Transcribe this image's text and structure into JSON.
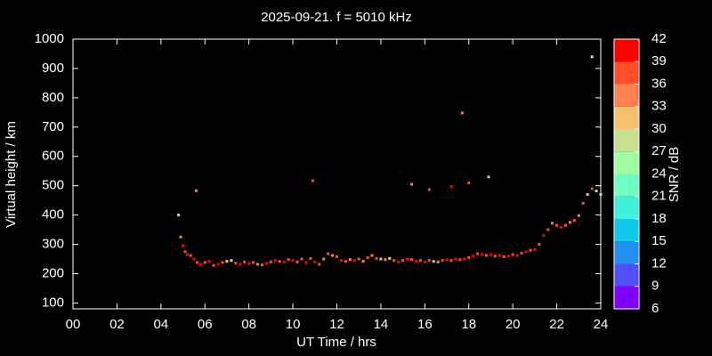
{
  "chart_data": {
    "type": "scatter",
    "title": "2025-09-21. f = 5010 kHz",
    "xlabel": "UT Time / hrs",
    "ylabel": "Virtual height / km",
    "colorbar_label": "SNR / dB",
    "xlim": [
      0,
      24
    ],
    "xticks": [
      {
        "value": 0,
        "label": "00"
      },
      {
        "value": 2,
        "label": "02"
      },
      {
        "value": 4,
        "label": "04"
      },
      {
        "value": 6,
        "label": "06"
      },
      {
        "value": 8,
        "label": "08"
      },
      10,
      12,
      14,
      16,
      18,
      20,
      22,
      24
    ],
    "ylim": [
      80,
      1000
    ],
    "yticks": [
      100,
      200,
      300,
      400,
      500,
      600,
      700,
      800,
      900,
      1000
    ],
    "clim": [
      6,
      42
    ],
    "cticks": [
      6,
      9,
      12,
      15,
      18,
      21,
      24,
      27,
      30,
      33,
      36,
      39,
      42
    ],
    "colors": [
      "#8000ff",
      "#5050ff",
      "#2090f0",
      "#10c8e8",
      "#40f0d8",
      "#70ffc0",
      "#a0ffa0",
      "#c8e090",
      "#f7c070",
      "#ff8050",
      "#ff4f2a",
      "#ff0000"
    ],
    "x": [
      4.8,
      4.9,
      5.0,
      5.1,
      5.2,
      5.35,
      5.5,
      5.65,
      5.8,
      6.0,
      6.2,
      6.4,
      6.6,
      6.8,
      7.0,
      7.2,
      7.4,
      7.6,
      7.8,
      8.0,
      8.2,
      8.4,
      8.6,
      8.8,
      9.0,
      9.2,
      9.4,
      9.6,
      9.8,
      10.0,
      10.2,
      10.4,
      10.6,
      10.8,
      11.0,
      11.2,
      11.4,
      11.6,
      11.8,
      12.0,
      12.2,
      12.4,
      12.6,
      12.8,
      13.0,
      13.2,
      13.4,
      13.6,
      13.8,
      14.0,
      14.2,
      14.4,
      14.6,
      14.8,
      15.0,
      15.2,
      15.4,
      15.6,
      15.8,
      16.0,
      16.2,
      16.4,
      16.6,
      16.8,
      17.0,
      17.2,
      17.4,
      17.6,
      17.8,
      18.0,
      18.2,
      18.4,
      18.6,
      18.8,
      19.0,
      19.2,
      19.4,
      19.6,
      19.8,
      20.0,
      20.2,
      20.4,
      20.6,
      20.8,
      21.0,
      21.2,
      21.4,
      21.6,
      21.8,
      22.0,
      22.2,
      22.4,
      22.6,
      22.8,
      23.0,
      23.2,
      23.4,
      23.6,
      23.8,
      24.0,
      5.6,
      10.9,
      15.4,
      16.2,
      17.2,
      17.7,
      18.0,
      18.9,
      23.6
    ],
    "values": [
      400,
      325,
      295,
      275,
      265,
      262,
      250,
      238,
      232,
      238,
      242,
      228,
      232,
      238,
      242,
      245,
      236,
      232,
      240,
      235,
      238,
      232,
      230,
      235,
      240,
      245,
      242,
      240,
      248,
      245,
      240,
      250,
      238,
      252,
      240,
      232,
      250,
      268,
      262,
      258,
      245,
      242,
      248,
      245,
      250,
      242,
      255,
      262,
      252,
      250,
      248,
      252,
      245,
      240,
      245,
      250,
      248,
      242,
      245,
      240,
      245,
      242,
      240,
      245,
      248,
      245,
      250,
      248,
      250,
      255,
      260,
      268,
      265,
      262,
      265,
      260,
      262,
      258,
      260,
      265,
      262,
      270,
      275,
      280,
      282,
      300,
      330,
      350,
      372,
      365,
      358,
      365,
      375,
      382,
      398,
      440,
      470,
      490,
      482,
      470,
      483,
      517,
      505,
      487,
      497,
      748,
      510,
      530,
      940
    ],
    "snr": [
      27,
      33,
      42,
      36,
      39,
      36,
      39,
      36,
      39,
      36,
      39,
      36,
      39,
      36,
      30,
      27,
      36,
      39,
      36,
      39,
      36,
      33,
      36,
      39,
      36,
      39,
      36,
      39,
      36,
      39,
      36,
      36,
      39,
      36,
      39,
      36,
      33,
      36,
      33,
      36,
      39,
      36,
      33,
      39,
      36,
      33,
      36,
      33,
      36,
      30,
      33,
      27,
      36,
      39,
      36,
      39,
      36,
      39,
      36,
      39,
      36,
      30,
      33,
      36,
      39,
      36,
      39,
      36,
      39,
      36,
      39,
      36,
      39,
      36,
      39,
      36,
      39,
      36,
      39,
      36,
      39,
      36,
      39,
      36,
      39,
      36,
      39,
      36,
      33,
      36,
      39,
      36,
      33,
      36,
      33,
      36,
      30,
      36,
      27,
      21,
      33,
      36,
      33,
      36,
      42,
      33,
      36,
      30,
      24
    ]
  }
}
